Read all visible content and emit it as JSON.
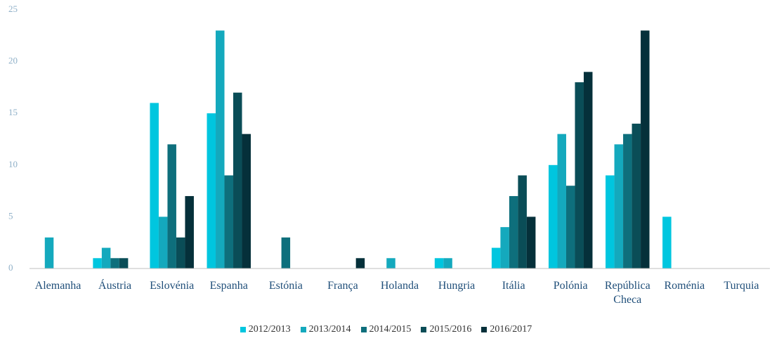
{
  "chart_data": {
    "type": "bar",
    "categories": [
      "Alemanha",
      "Áustria",
      "Eslovénia",
      "Espanha",
      "Estónia",
      "França",
      "Holanda",
      "Hungria",
      "Itália",
      "Polónia",
      "República Checa",
      "Roménia",
      "Turquia"
    ],
    "series": [
      {
        "name": "2012/2013",
        "color": "#00c6df",
        "values": [
          0,
          1,
          16,
          15,
          0,
          0,
          0,
          1,
          2,
          10,
          9,
          5,
          0
        ]
      },
      {
        "name": "2013/2014",
        "color": "#14a9bd",
        "values": [
          3,
          2,
          5,
          23,
          0,
          0,
          1,
          1,
          4,
          13,
          12,
          0,
          0
        ]
      },
      {
        "name": "2014/2015",
        "color": "#0e6f7c",
        "values": [
          0,
          1,
          12,
          9,
          3,
          0,
          0,
          0,
          7,
          8,
          13,
          0,
          0
        ]
      },
      {
        "name": "2015/2016",
        "color": "#0a4d57",
        "values": [
          0,
          1,
          3,
          17,
          0,
          0,
          0,
          0,
          9,
          18,
          14,
          0,
          0
        ]
      },
      {
        "name": "2016/2017",
        "color": "#05303a",
        "values": [
          0,
          0,
          7,
          13,
          0,
          1,
          0,
          0,
          5,
          19,
          23,
          0,
          0
        ]
      }
    ],
    "ylim": [
      0,
      25
    ],
    "yticks": [
      0,
      5,
      10,
      15,
      20,
      25
    ],
    "grid": false,
    "legend": "bottom"
  }
}
